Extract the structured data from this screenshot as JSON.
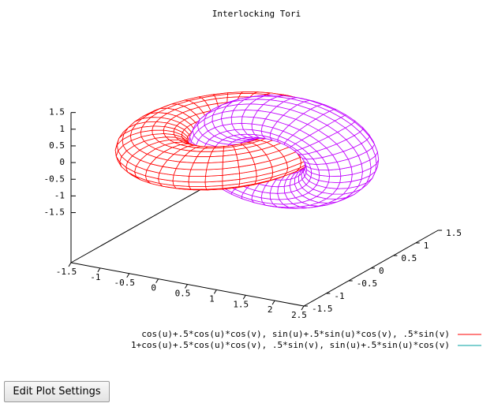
{
  "chart_data": {
    "type": "surface",
    "title": "Interlocking Tori",
    "series": [
      {
        "name": "cos(u)+.5*cos(u)*cos(v), sin(u)+.5*sin(u)*cos(v), .5*sin(v)",
        "color": "#ff0000",
        "face_color": "#ff0000"
      },
      {
        "name": "1+cos(u)+.5*cos(u)*cos(v), .5*sin(v), sin(u)+.5*sin(u)*cos(v)",
        "color": "#00a0a0",
        "face_color": "#c000ff"
      }
    ],
    "xlim": [
      -1.5,
      2.5
    ],
    "xticks": [
      -1.5,
      -1,
      -0.5,
      0,
      0.5,
      1,
      1.5,
      2,
      2.5
    ],
    "ylim": [
      -1.5,
      1.5
    ],
    "yticks": [
      -1.5,
      -1,
      -0.5,
      0,
      0.5,
      1,
      1.5
    ],
    "zlim": [
      -1.5,
      1.5
    ],
    "zticks": [
      -1.5,
      -1,
      -0.5,
      0,
      0.5,
      1,
      1.5
    ]
  },
  "button": {
    "label": "Edit Plot Settings"
  }
}
